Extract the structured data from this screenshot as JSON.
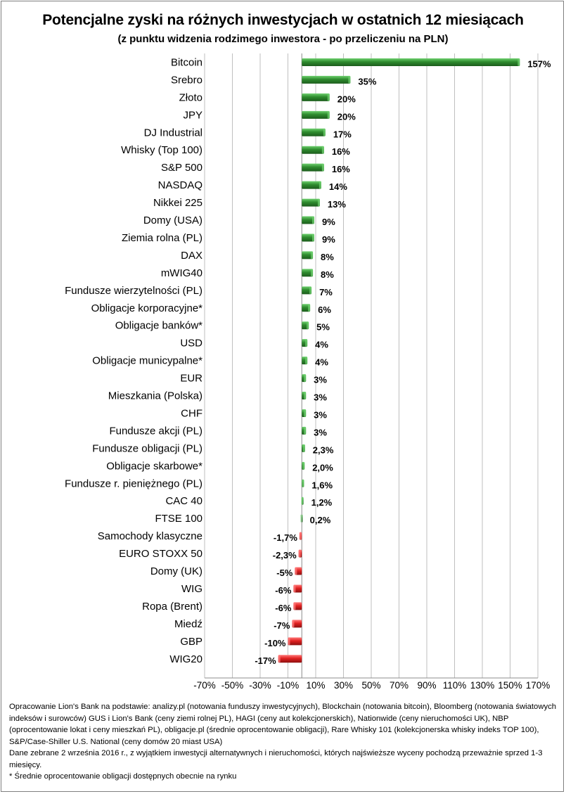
{
  "title": "Potencjalne zyski na różnych inwestycjach w ostatnich 12 miesiącach",
  "subtitle": "(z punktu  widzenia rodzimego  inwestora - po przeliczeniu na PLN)",
  "colors": {
    "positive": "#2e8b2e",
    "positive_light": "#6fd06f",
    "positive_dark": "#1c5c1c",
    "negative": "#e02020",
    "negative_light": "#ff7a7a",
    "negative_dark": "#8c1010",
    "grid": "#bfbfbf"
  },
  "chart_data": {
    "type": "bar",
    "orientation": "horizontal",
    "title": "Potencjalne zyski na różnych inwestycjach w ostatnich 12 miesiącach",
    "xlabel": "",
    "ylabel": "",
    "xlim": [
      -70,
      170
    ],
    "x_ticks": [
      -70,
      -50,
      -30,
      -10,
      10,
      30,
      50,
      70,
      90,
      110,
      130,
      150,
      170
    ],
    "x_tick_labels": [
      "-70%",
      "-50%",
      "-30%",
      "-10%",
      "10%",
      "30%",
      "50%",
      "70%",
      "90%",
      "110%",
      "130%",
      "150%",
      "170%"
    ],
    "grid": true,
    "categories": [
      "Bitcoin",
      "Srebro",
      "Złoto",
      "JPY",
      "DJ Industrial",
      "Whisky (Top 100)",
      "S&P 500",
      "NASDAQ",
      "Nikkei 225",
      "Domy (USA)",
      "Ziemia rolna (PL)",
      "DAX",
      "mWIG40",
      "Fundusze wierzytelności (PL)",
      "Obligacje korporacyjne*",
      "Obligacje banków*",
      "USD",
      "Obligacje municypalne*",
      "EUR",
      "Mieszkania (Polska)",
      "CHF",
      "Fundusze akcji (PL)",
      "Fundusze obligacji (PL)",
      "Obligacje skarbowe*",
      "Fundusze r. pieniężnego (PL)",
      "CAC 40",
      "FTSE 100",
      "Samochody klasyczne",
      "EURO STOXX 50",
      "Domy (UK)",
      "WIG",
      "Ropa (Brent)",
      "Miedź",
      "GBP",
      "WIG20"
    ],
    "values": [
      157,
      35,
      20,
      20,
      17,
      16,
      16,
      14,
      13,
      9,
      9,
      8,
      8,
      7,
      6,
      5,
      4,
      4,
      3,
      3,
      3,
      3,
      2.3,
      2.0,
      1.6,
      1.2,
      0.2,
      -1.7,
      -2.3,
      -5,
      -6,
      -6,
      -7,
      -10,
      -17
    ],
    "value_labels": [
      "157%",
      "35%",
      "20%",
      "20%",
      "17%",
      "16%",
      "16%",
      "14%",
      "13%",
      "9%",
      "9%",
      "8%",
      "8%",
      "7%",
      "6%",
      "5%",
      "4%",
      "4%",
      "3%",
      "3%",
      "3%",
      "3%",
      "2,3%",
      "2,0%",
      "1,6%",
      "1,2%",
      "0,2%",
      "-1,7%",
      "-2,3%",
      "-5%",
      "-6%",
      "-6%",
      "-7%",
      "-10%",
      "-17%"
    ]
  },
  "notes": [
    "Opracowanie Lion's Bank na podstawie: analizy.pl (notowania funduszy inwestycyjnych), Blockchain (notowania bitcoin), Bloomberg (notowania światowych indeksów i surowców) GUS i Lion's Bank (ceny ziemi rolnej PL), HAGI (ceny aut kolekcjonerskich), Nationwide (ceny nieruchomości UK), NBP (oprocentowanie lokat i ceny mieszkań PL), obligacje.pl (średnie oprocentowanie obligacji), Rare Whisky 101 (kolekcjonerska whisky indeks TOP 100), S&P/Case-Shiller U.S. National (ceny domów 20 miast USA)",
    "Dane zebrane 2 września 2016 r., z wyjątkiem inwestycji alternatywnych i nieruchomości, których najświeższe wyceny pochodzą przeważnie sprzed 1-3 miesięcy.",
    "* Średnie oprocentowanie obligacji dostępnych obecnie na rynku"
  ]
}
